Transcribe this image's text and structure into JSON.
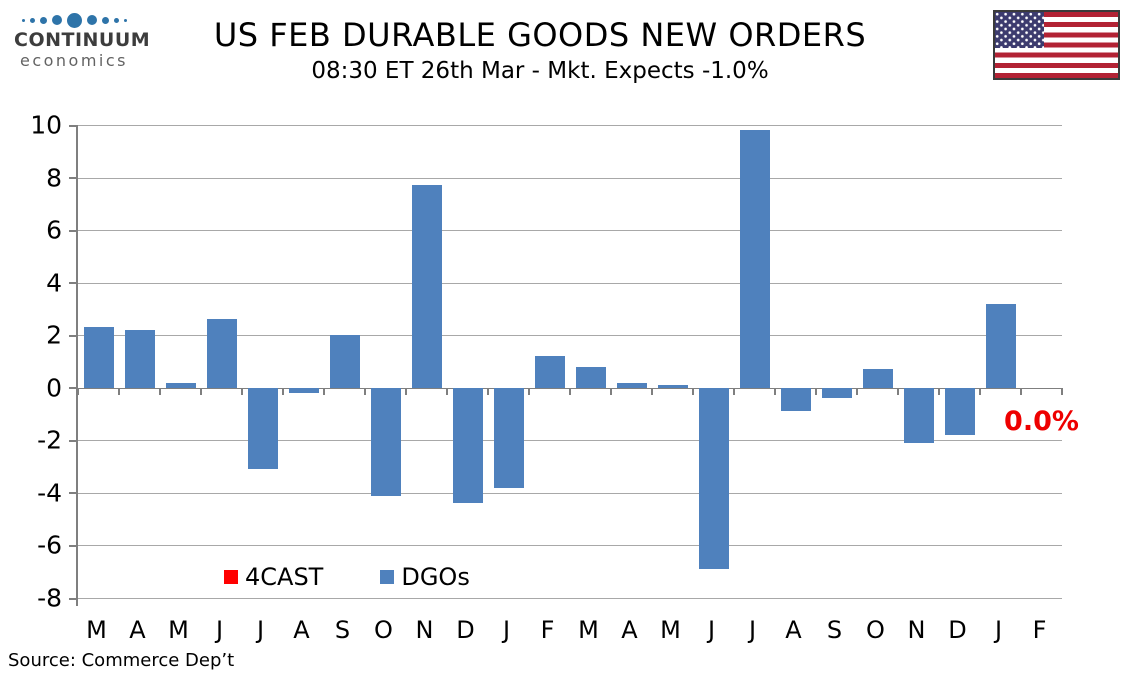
{
  "header": {
    "logo": {
      "brand": "CONTINUUM",
      "sub": "economics",
      "dot_color": "#2E74A9"
    },
    "title": "US FEB DURABLE GOODS NEW ORDERS",
    "subtitle": "08:30 ET 26th Mar - Mkt. Expects -1.0%"
  },
  "chart_data": {
    "type": "bar",
    "title": "US FEB DURABLE GOODS NEW ORDERS",
    "subtitle": "08:30 ET 26th Mar - Mkt. Expects -1.0%",
    "categories": [
      "M",
      "A",
      "M",
      "J",
      "J",
      "A",
      "S",
      "O",
      "N",
      "D",
      "J",
      "F",
      "M",
      "A",
      "M",
      "J",
      "J",
      "A",
      "S",
      "O",
      "N",
      "D",
      "J",
      "F"
    ],
    "series": [
      {
        "name": "DGOs",
        "color": "#4F81BD",
        "values": [
          2.3,
          2.2,
          0.2,
          2.6,
          -3.1,
          -0.2,
          2.0,
          -4.1,
          7.7,
          -4.4,
          -3.8,
          1.2,
          0.8,
          0.2,
          0.1,
          -6.9,
          9.8,
          -0.9,
          -0.4,
          0.7,
          -2.1,
          -1.8,
          3.2,
          null
        ]
      },
      {
        "name": "4CAST",
        "color": "#FF0000",
        "values": [
          null,
          null,
          null,
          null,
          null,
          null,
          null,
          null,
          null,
          null,
          null,
          null,
          null,
          null,
          null,
          null,
          null,
          null,
          null,
          null,
          null,
          null,
          null,
          0.0
        ]
      }
    ],
    "annotation": {
      "text": "0.0%",
      "color": "#EE0000",
      "category_index": 23,
      "value_y": -0.7
    },
    "ylim": [
      -8,
      10
    ],
    "yticks": [
      10,
      8,
      6,
      4,
      2,
      0,
      -2,
      -4,
      -6,
      -8
    ],
    "grid": true,
    "legend": [
      {
        "label": "4CAST",
        "color": "#FF0000"
      },
      {
        "label": "DGOs",
        "color": "#4F81BD"
      }
    ],
    "legend_position": "bottom-inside",
    "xlabel": "",
    "ylabel": ""
  },
  "footer": {
    "source": "Source: Commerce Dep’t"
  }
}
